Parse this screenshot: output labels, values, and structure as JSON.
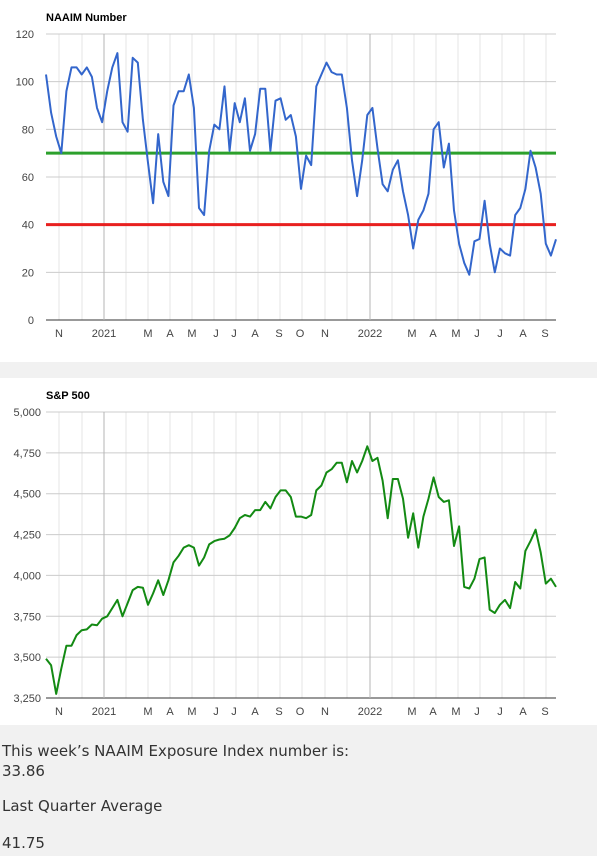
{
  "charts": [
    {
      "title": "NAAIM Number",
      "ylim": [
        0,
        120
      ],
      "yticks": [
        0,
        20,
        40,
        60,
        80,
        100,
        120
      ],
      "ytick_labels": [
        "0",
        "20",
        "40",
        "60",
        "80",
        "100",
        "120"
      ],
      "xaxis_labels": [
        "N",
        "2021",
        "M",
        "A",
        "M",
        "J",
        "J",
        "A",
        "S",
        "O",
        "N",
        "2022",
        "M",
        "A",
        "M",
        "J",
        "J",
        "A",
        "S"
      ],
      "line_color": "#3366cc",
      "reference_lines": [
        {
          "value": 70,
          "color": "#2ca02c"
        },
        {
          "value": 40,
          "color": "#e8201f"
        }
      ]
    },
    {
      "title": "S&P 500",
      "ylim": [
        3250,
        5000
      ],
      "yticks": [
        3250,
        3500,
        3750,
        4000,
        4250,
        4500,
        4750,
        5000
      ],
      "ytick_labels": [
        "3,250",
        "3,500",
        "3,750",
        "4,000",
        "4,250",
        "4,500",
        "4,750",
        "5,000"
      ],
      "xaxis_labels": [
        "N",
        "2021",
        "M",
        "A",
        "M",
        "J",
        "J",
        "A",
        "S",
        "O",
        "N",
        "2022",
        "M",
        "A",
        "M",
        "J",
        "J",
        "A",
        "S"
      ],
      "line_color": "#138a13",
      "reference_lines": []
    }
  ],
  "chart_data": [
    {
      "type": "line",
      "title": "NAAIM Number",
      "xlabel": "",
      "ylabel": "",
      "ylim": [
        0,
        120
      ],
      "x_range": [
        "2020-10-14",
        "2022-09-14"
      ],
      "reference_lines": [
        70,
        40
      ],
      "series": [
        {
          "x": [
            "2020-10-14",
            "2020-10-21",
            "2020-10-28",
            "2020-11-04",
            "2020-11-11",
            "2020-11-18",
            "2020-11-25",
            "2020-12-02",
            "2020-12-09",
            "2020-12-16",
            "2020-12-23",
            "2020-12-30",
            "2021-01-06",
            "2021-01-13",
            "2021-01-20",
            "2021-01-27",
            "2021-02-03",
            "2021-02-10",
            "2021-02-17",
            "2021-02-24",
            "2021-03-03",
            "2021-03-10",
            "2021-03-17",
            "2021-03-24",
            "2021-03-31",
            "2021-04-07",
            "2021-04-14",
            "2021-04-21",
            "2021-04-28",
            "2021-05-05",
            "2021-05-12",
            "2021-05-19",
            "2021-05-26",
            "2021-06-02",
            "2021-06-09",
            "2021-06-16",
            "2021-06-23",
            "2021-06-30",
            "2021-07-07",
            "2021-07-14",
            "2021-07-21",
            "2021-07-28",
            "2021-08-04",
            "2021-08-11",
            "2021-08-18",
            "2021-08-25",
            "2021-09-01",
            "2021-09-08",
            "2021-09-15",
            "2021-09-22",
            "2021-09-29",
            "2021-10-06",
            "2021-10-13",
            "2021-10-20",
            "2021-10-27",
            "2021-11-03",
            "2021-11-10",
            "2021-11-17",
            "2021-11-24",
            "2021-12-01",
            "2021-12-08",
            "2021-12-15",
            "2021-12-22",
            "2021-12-29",
            "2022-01-05",
            "2022-01-12",
            "2022-01-19",
            "2022-01-26",
            "2022-02-02",
            "2022-02-09",
            "2022-02-16",
            "2022-02-23",
            "2022-03-02",
            "2022-03-09",
            "2022-03-16",
            "2022-03-23",
            "2022-03-30",
            "2022-04-06",
            "2022-04-13",
            "2022-04-20",
            "2022-04-27",
            "2022-05-04",
            "2022-05-11",
            "2022-05-18",
            "2022-05-25",
            "2022-06-01",
            "2022-06-08",
            "2022-06-15",
            "2022-06-22",
            "2022-06-29",
            "2022-07-06",
            "2022-07-13",
            "2022-07-20",
            "2022-07-27",
            "2022-08-03",
            "2022-08-10",
            "2022-08-17",
            "2022-08-24",
            "2022-08-31",
            "2022-09-07",
            "2022-09-14"
          ],
          "values": [
            103,
            87,
            77,
            70,
            96,
            106,
            106,
            103,
            106,
            102,
            89,
            83,
            96,
            106,
            112,
            83,
            79,
            110,
            108,
            84,
            66,
            49,
            78,
            58,
            52,
            90,
            96,
            96,
            103,
            89,
            47,
            44,
            71,
            82,
            80,
            98,
            71,
            91,
            83,
            93,
            71,
            78,
            97,
            97,
            71,
            92,
            93,
            84,
            86,
            77,
            55,
            69,
            65,
            98,
            103,
            108,
            104,
            103,
            103,
            89,
            67,
            52,
            67,
            86,
            89,
            72,
            57,
            54,
            63,
            67,
            54,
            44,
            30,
            42,
            46,
            53,
            80,
            83,
            64,
            74,
            46,
            32,
            24,
            19,
            33,
            34,
            50,
            32,
            20,
            30,
            28,
            27,
            44,
            47,
            55,
            71,
            64,
            53,
            32,
            27,
            33.86
          ]
        }
      ]
    },
    {
      "type": "line",
      "title": "S&P 500",
      "xlabel": "",
      "ylabel": "",
      "ylim": [
        3250,
        5000
      ],
      "x_range": [
        "2020-10-14",
        "2022-09-14"
      ],
      "series": [
        {
          "x": [
            "2020-10-14",
            "2020-10-21",
            "2020-10-28",
            "2020-11-04",
            "2020-11-11",
            "2020-11-18",
            "2020-11-25",
            "2020-12-02",
            "2020-12-09",
            "2020-12-16",
            "2020-12-23",
            "2020-12-30",
            "2021-01-06",
            "2021-01-13",
            "2021-01-20",
            "2021-01-27",
            "2021-02-03",
            "2021-02-10",
            "2021-02-17",
            "2021-02-24",
            "2021-03-03",
            "2021-03-10",
            "2021-03-17",
            "2021-03-24",
            "2021-03-31",
            "2021-04-07",
            "2021-04-14",
            "2021-04-21",
            "2021-04-28",
            "2021-05-05",
            "2021-05-12",
            "2021-05-19",
            "2021-05-26",
            "2021-06-02",
            "2021-06-09",
            "2021-06-16",
            "2021-06-23",
            "2021-06-30",
            "2021-07-07",
            "2021-07-14",
            "2021-07-21",
            "2021-07-28",
            "2021-08-04",
            "2021-08-11",
            "2021-08-18",
            "2021-08-25",
            "2021-09-01",
            "2021-09-08",
            "2021-09-15",
            "2021-09-22",
            "2021-09-29",
            "2021-10-06",
            "2021-10-13",
            "2021-10-20",
            "2021-10-27",
            "2021-11-03",
            "2021-11-10",
            "2021-11-17",
            "2021-11-24",
            "2021-12-01",
            "2021-12-08",
            "2021-12-15",
            "2021-12-22",
            "2021-12-29",
            "2022-01-05",
            "2022-01-12",
            "2022-01-19",
            "2022-01-26",
            "2022-02-02",
            "2022-02-09",
            "2022-02-16",
            "2022-02-23",
            "2022-03-02",
            "2022-03-09",
            "2022-03-16",
            "2022-03-23",
            "2022-03-30",
            "2022-04-06",
            "2022-04-13",
            "2022-04-20",
            "2022-04-27",
            "2022-05-04",
            "2022-05-11",
            "2022-05-18",
            "2022-05-25",
            "2022-06-01",
            "2022-06-08",
            "2022-06-15",
            "2022-06-22",
            "2022-06-29",
            "2022-07-06",
            "2022-07-13",
            "2022-07-20",
            "2022-07-27",
            "2022-08-03",
            "2022-08-10",
            "2022-08-17",
            "2022-08-24",
            "2022-08-31",
            "2022-09-07",
            "2022-09-14"
          ],
          "values": [
            3490,
            3450,
            3275,
            3430,
            3570,
            3570,
            3635,
            3665,
            3670,
            3700,
            3695,
            3735,
            3750,
            3800,
            3850,
            3750,
            3830,
            3910,
            3930,
            3925,
            3820,
            3890,
            3970,
            3880,
            3970,
            4080,
            4120,
            4170,
            4185,
            4170,
            4060,
            4110,
            4190,
            4210,
            4220,
            4225,
            4245,
            4290,
            4350,
            4370,
            4360,
            4400,
            4400,
            4450,
            4410,
            4480,
            4520,
            4520,
            4480,
            4360,
            4360,
            4350,
            4370,
            4520,
            4550,
            4630,
            4650,
            4690,
            4690,
            4570,
            4700,
            4630,
            4700,
            4790,
            4700,
            4720,
            4580,
            4350,
            4590,
            4590,
            4470,
            4230,
            4380,
            4170,
            4360,
            4470,
            4600,
            4480,
            4450,
            4460,
            4180,
            4300,
            3930,
            3920,
            3980,
            4100,
            4110,
            3790,
            3770,
            3820,
            3850,
            3800,
            3960,
            3920,
            4150,
            4210,
            4280,
            4140,
            3950,
            3980,
            3930
          ]
        }
      ]
    }
  ],
  "info": {
    "weekly_label": "This week’s NAAIM Exposure Index number is:",
    "weekly_value": "33.86",
    "quarter_label": "Last Quarter Average",
    "quarter_value": "41.75"
  }
}
